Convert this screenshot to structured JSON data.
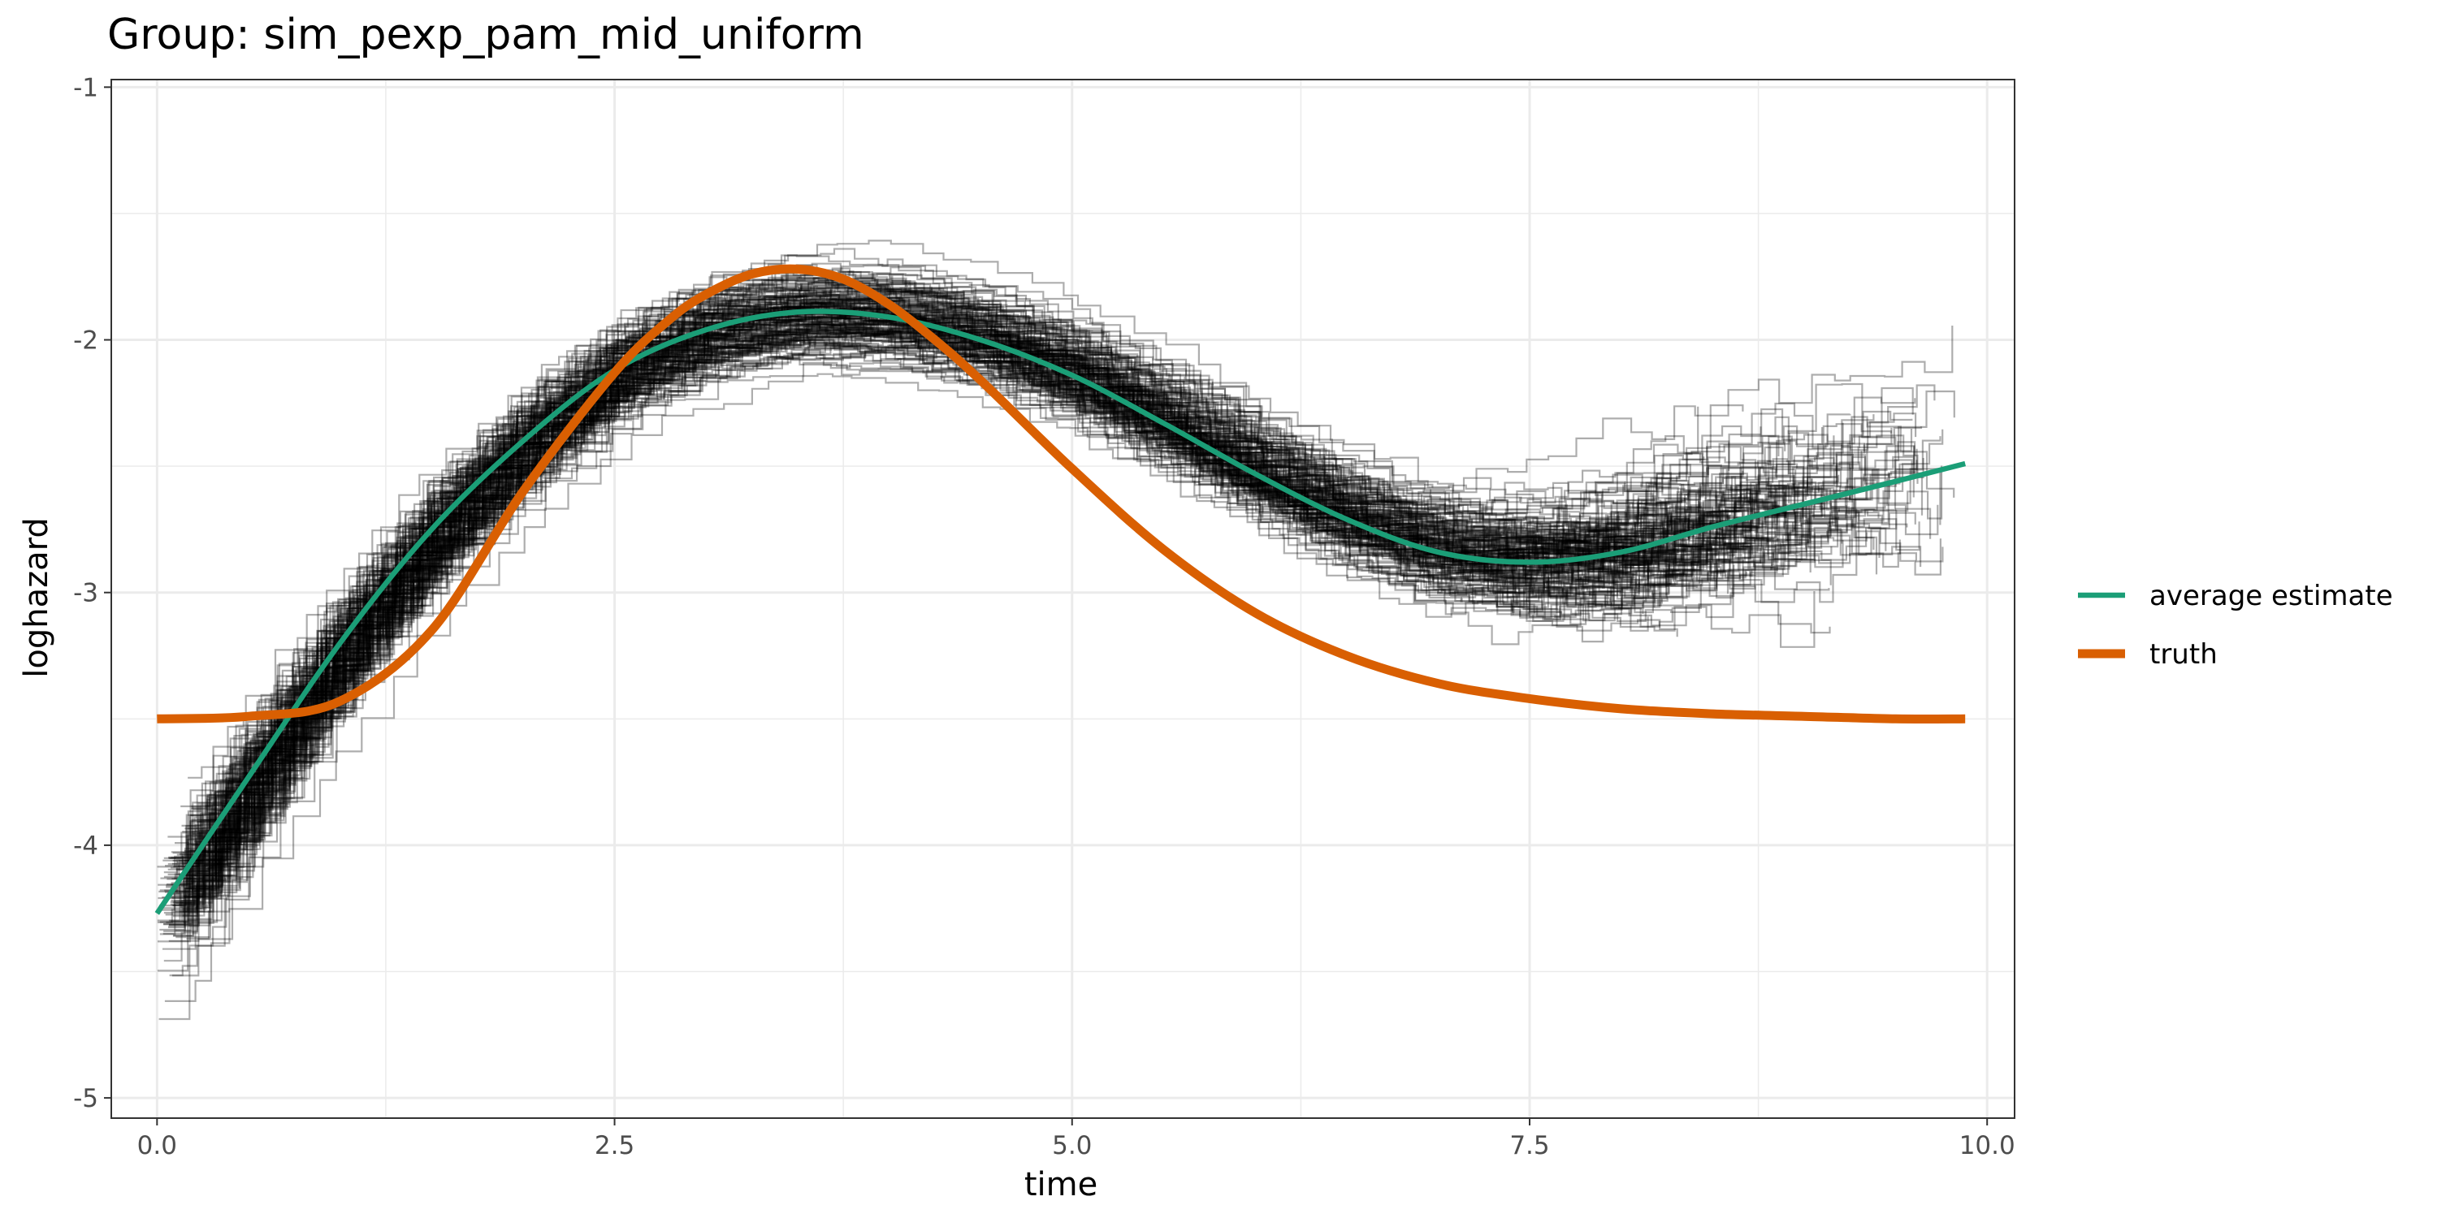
{
  "chart_data": {
    "type": "line",
    "title": "Group: sim_pexp_pam_mid_uniform",
    "xlabel": "time",
    "ylabel": "loghazard",
    "xlim": [
      -0.25,
      10.15
    ],
    "ylim": [
      -5.08,
      -0.97
    ],
    "x_ticks": [
      0.0,
      2.5,
      5.0,
      7.5,
      10.0
    ],
    "x_tick_labels": [
      "0.0",
      "2.5",
      "5.0",
      "7.5",
      "10.0"
    ],
    "y_ticks": [
      -5,
      -4,
      -3,
      -2,
      -1
    ],
    "y_tick_labels": [
      "-5",
      "-4",
      "-3",
      "-2",
      "-1"
    ],
    "grid": true,
    "legend_position": "right",
    "background_replicates": {
      "description_visible": false,
      "color": "#000000",
      "opacity": 0.32,
      "count": 180
    },
    "series": [
      {
        "name": "average estimate",
        "color": "#1b9e77",
        "x": [
          0.0,
          0.5,
          1.0,
          1.5,
          2.0,
          2.5,
          3.0,
          3.5,
          4.0,
          4.5,
          5.0,
          5.5,
          6.0,
          6.5,
          7.0,
          7.5,
          8.0,
          8.5,
          9.0,
          9.5,
          9.88
        ],
        "y": [
          -4.27,
          -3.73,
          -3.2,
          -2.75,
          -2.4,
          -2.12,
          -1.96,
          -1.89,
          -1.91,
          -2.0,
          -2.14,
          -2.33,
          -2.53,
          -2.71,
          -2.84,
          -2.88,
          -2.84,
          -2.74,
          -2.65,
          -2.56,
          -2.49
        ]
      },
      {
        "name": "truth",
        "color": "#d95f02",
        "x": [
          0.0,
          0.5,
          1.0,
          1.5,
          2.0,
          2.5,
          2.8,
          3.0,
          3.25,
          3.5,
          3.75,
          4.0,
          4.25,
          4.5,
          5.0,
          5.5,
          6.0,
          6.5,
          7.0,
          7.5,
          8.0,
          8.5,
          9.0,
          9.5,
          9.88
        ],
        "y": [
          -3.5,
          -3.49,
          -3.43,
          -3.15,
          -2.6,
          -2.13,
          -1.92,
          -1.82,
          -1.74,
          -1.72,
          -1.76,
          -1.86,
          -2.0,
          -2.16,
          -2.51,
          -2.83,
          -3.08,
          -3.25,
          -3.36,
          -3.42,
          -3.46,
          -3.48,
          -3.49,
          -3.5,
          -3.5
        ]
      }
    ]
  }
}
